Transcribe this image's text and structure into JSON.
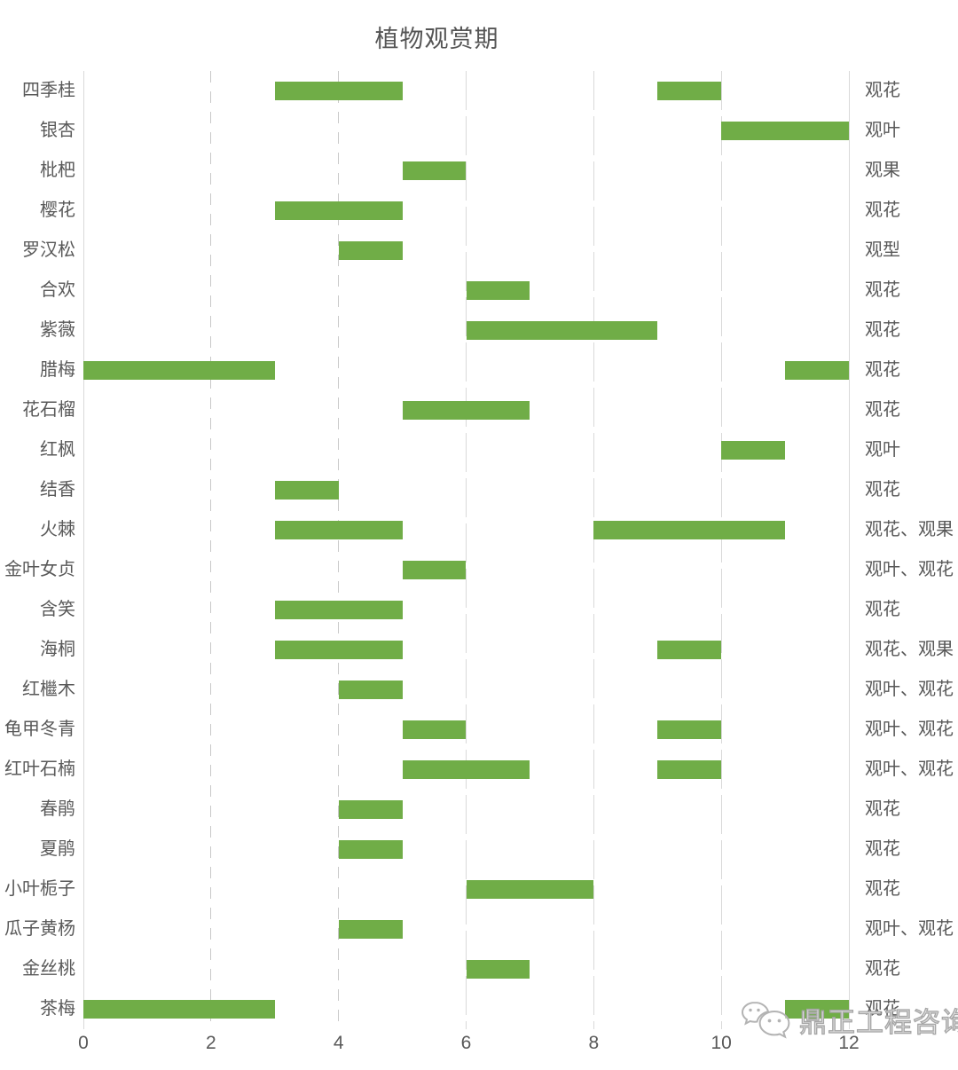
{
  "title": "植物观赏期",
  "watermark": {
    "text": "鼎正工程咨询",
    "icon": "wechat-icon"
  },
  "chart_data": {
    "type": "bar",
    "variant": "horizontal-range-gantt",
    "title": "植物观赏期",
    "xlabel": "",
    "ylabel": "",
    "bar_color": "#70ad47",
    "text_color": "#595959",
    "grid_color": "#d9d9d9",
    "grid": true,
    "legend_position": "none",
    "x_axis": {
      "min": 0,
      "max": 12,
      "ticks": [
        0,
        2,
        4,
        6,
        8,
        10,
        12
      ]
    },
    "rows": [
      {
        "plant": "四季桂",
        "periods": [
          [
            3,
            5
          ],
          [
            9,
            10
          ]
        ],
        "category": "观花"
      },
      {
        "plant": "银杏",
        "periods": [
          [
            10,
            12
          ]
        ],
        "category": "观叶"
      },
      {
        "plant": "枇杷",
        "periods": [
          [
            5,
            6
          ]
        ],
        "category": "观果"
      },
      {
        "plant": "樱花",
        "periods": [
          [
            3,
            5
          ]
        ],
        "category": "观花"
      },
      {
        "plant": "罗汉松",
        "periods": [
          [
            4,
            5
          ]
        ],
        "category": "观型"
      },
      {
        "plant": "合欢",
        "periods": [
          [
            6,
            7
          ]
        ],
        "category": "观花"
      },
      {
        "plant": "紫薇",
        "periods": [
          [
            6,
            9
          ]
        ],
        "category": "观花"
      },
      {
        "plant": "腊梅",
        "periods": [
          [
            0,
            3
          ],
          [
            11,
            12
          ]
        ],
        "category": "观花"
      },
      {
        "plant": "花石榴",
        "periods": [
          [
            5,
            7
          ]
        ],
        "category": "观花"
      },
      {
        "plant": "红枫",
        "periods": [
          [
            10,
            11
          ]
        ],
        "category": "观叶"
      },
      {
        "plant": "结香",
        "periods": [
          [
            3,
            4
          ]
        ],
        "category": "观花"
      },
      {
        "plant": "火棘",
        "periods": [
          [
            3,
            5
          ],
          [
            8,
            11
          ]
        ],
        "category": "观花、观果"
      },
      {
        "plant": "金叶女贞",
        "periods": [
          [
            5,
            6
          ]
        ],
        "category": "观叶、观花"
      },
      {
        "plant": "含笑",
        "periods": [
          [
            3,
            5
          ]
        ],
        "category": "观花"
      },
      {
        "plant": "海桐",
        "periods": [
          [
            3,
            5
          ],
          [
            9,
            10
          ]
        ],
        "category": "观花、观果"
      },
      {
        "plant": "红檵木",
        "periods": [
          [
            4,
            5
          ]
        ],
        "category": "观叶、观花"
      },
      {
        "plant": "龟甲冬青",
        "periods": [
          [
            5,
            6
          ],
          [
            9,
            10
          ]
        ],
        "category": "观叶、观花"
      },
      {
        "plant": "红叶石楠",
        "periods": [
          [
            5,
            7
          ],
          [
            9,
            10
          ]
        ],
        "category": "观叶、观花"
      },
      {
        "plant": "春鹃",
        "periods": [
          [
            4,
            5
          ]
        ],
        "category": "观花"
      },
      {
        "plant": "夏鹃",
        "periods": [
          [
            4,
            5
          ]
        ],
        "category": "观花"
      },
      {
        "plant": "小叶栀子",
        "periods": [
          [
            6,
            8
          ]
        ],
        "category": "观花"
      },
      {
        "plant": "瓜子黄杨",
        "periods": [
          [
            4,
            5
          ]
        ],
        "category": "观叶、观花"
      },
      {
        "plant": "金丝桃",
        "periods": [
          [
            6,
            7
          ]
        ],
        "category": "观花"
      },
      {
        "plant": "茶梅",
        "periods": [
          [
            0,
            3
          ],
          [
            11,
            12
          ]
        ],
        "category": "观花"
      }
    ]
  }
}
